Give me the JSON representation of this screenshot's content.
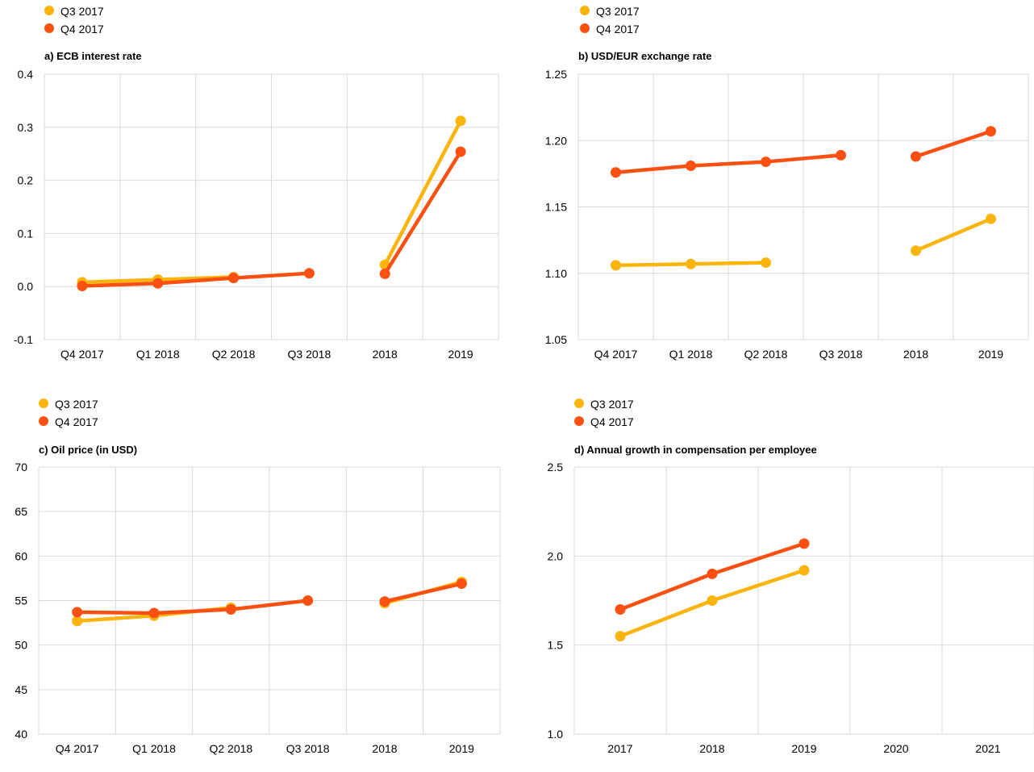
{
  "colors": {
    "q3": "#FBB40C",
    "q4": "#FA5012",
    "grid": "#d9d9d9"
  },
  "chart_data": [
    {
      "type": "line",
      "title": "a) ECB interest rate",
      "legend": [
        "Q3 2017",
        "Q4 2017"
      ],
      "categories": [
        "Q4 2017",
        "Q1 2018",
        "Q2 2018",
        "Q3 2018",
        "2018",
        "2019"
      ],
      "ylim": [
        -0.1,
        0.4
      ],
      "yticks": [
        "-0.1",
        "0.0",
        "0.1",
        "0.2",
        "0.3",
        "0.4"
      ],
      "ytick_values": [
        -0.1,
        0.0,
        0.1,
        0.2,
        0.3,
        0.4
      ],
      "segments": [
        [
          0,
          3
        ],
        [
          4,
          5
        ]
      ],
      "series": [
        {
          "name": "Q3 2017",
          "values": [
            0.008,
            0.013,
            0.018,
            null,
            0.041,
            0.312
          ]
        },
        {
          "name": "Q4 2017",
          "values": [
            0.001,
            0.006,
            0.016,
            0.025,
            0.024,
            0.254
          ]
        }
      ]
    },
    {
      "type": "line",
      "title": "b) USD/EUR exchange rate",
      "legend": [
        "Q3 2017",
        "Q4 2017"
      ],
      "categories": [
        "Q4 2017",
        "Q1 2018",
        "Q2 2018",
        "Q3 2018",
        "2018",
        "2019"
      ],
      "ylim": [
        1.05,
        1.25
      ],
      "yticks": [
        "1.05",
        "1.10",
        "1.15",
        "1.20",
        "1.25"
      ],
      "ytick_values": [
        1.05,
        1.1,
        1.15,
        1.2,
        1.25
      ],
      "segments": [
        [
          0,
          3
        ],
        [
          4,
          5
        ]
      ],
      "series": [
        {
          "name": "Q3 2017",
          "values": [
            1.106,
            1.107,
            1.108,
            null,
            1.117,
            1.141
          ]
        },
        {
          "name": "Q4 2017",
          "values": [
            1.176,
            1.181,
            1.184,
            1.189,
            1.188,
            1.207
          ]
        }
      ]
    },
    {
      "type": "line",
      "title": "c) Oil price (in USD)",
      "legend": [
        "Q3 2017",
        "Q4 2017"
      ],
      "categories": [
        "Q4 2017",
        "Q1 2018",
        "Q2 2018",
        "Q3 2018",
        "2018",
        "2019"
      ],
      "ylim": [
        40,
        70
      ],
      "yticks": [
        "40",
        "45",
        "50",
        "55",
        "60",
        "65",
        "70"
      ],
      "ytick_values": [
        40,
        45,
        50,
        55,
        60,
        65,
        70
      ],
      "segments": [
        [
          0,
          3
        ],
        [
          4,
          5
        ]
      ],
      "series": [
        {
          "name": "Q3 2017",
          "values": [
            52.7,
            53.3,
            54.2,
            null,
            54.7,
            57.1
          ]
        },
        {
          "name": "Q4 2017",
          "values": [
            53.7,
            53.6,
            54.0,
            55.0,
            54.9,
            56.9
          ]
        }
      ]
    },
    {
      "type": "line",
      "title": "d) Annual growth in compensation per employee",
      "legend": [
        "Q3 2017",
        "Q4 2017"
      ],
      "categories": [
        "2017",
        "2018",
        "2019",
        "2020",
        "2021"
      ],
      "ylim": [
        1.0,
        2.5
      ],
      "yticks": [
        "1.0",
        "1.5",
        "2.0",
        "2.5"
      ],
      "ytick_values": [
        1.0,
        1.5,
        2.0,
        2.5
      ],
      "segments": [
        [
          0,
          4
        ]
      ],
      "series": [
        {
          "name": "Q3 2017",
          "values": [
            1.55,
            1.75,
            1.92,
            null,
            null
          ]
        },
        {
          "name": "Q4 2017",
          "values": [
            1.7,
            1.9,
            2.07,
            null,
            null
          ]
        }
      ]
    }
  ]
}
